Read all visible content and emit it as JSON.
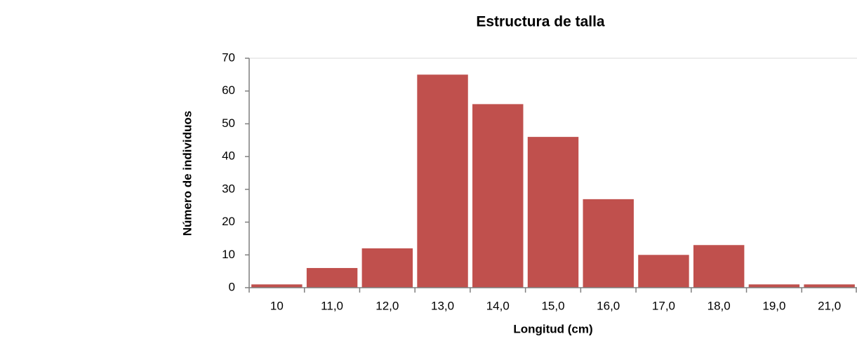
{
  "chart_data": {
    "type": "bar",
    "title": "Estructura de talla",
    "x_label": "Longitud (cm)",
    "y_label": "Número de individuos",
    "categories": [
      "10",
      "11,0",
      "12,0",
      "13,0",
      "14,0",
      "15,0",
      "16,0",
      "17,0",
      "18,0",
      "19,0",
      "21,0"
    ],
    "values": [
      1,
      6,
      12,
      65,
      56,
      46,
      27,
      10,
      13,
      1,
      1
    ],
    "color": "#c0504d",
    "ylim": [
      0,
      70
    ],
    "yticks": [
      0,
      10,
      20,
      30,
      40,
      50,
      60,
      70
    ],
    "grid": false
  }
}
